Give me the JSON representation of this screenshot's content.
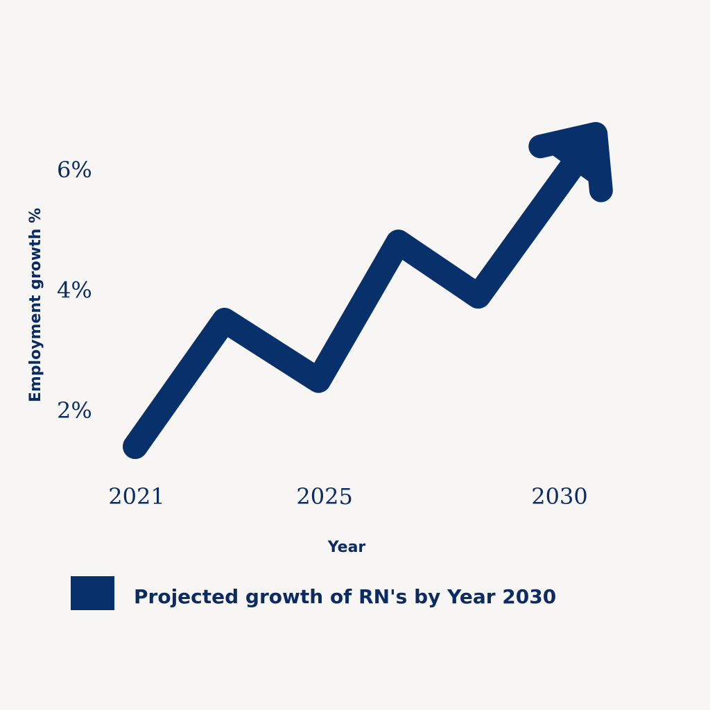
{
  "chart_data": {
    "type": "line",
    "title": "",
    "xlabel": "Year",
    "ylabel": "Employment growth %",
    "x_ticks": [
      "2021",
      "2025",
      "2030"
    ],
    "y_ticks": [
      "2%",
      "4%",
      "6%"
    ],
    "xlim": [
      2021,
      2030
    ],
    "ylim": [
      1,
      7
    ],
    "grid": false,
    "legend_position": "bottom",
    "series": [
      {
        "name": "Projected growth of RN's by Year 2030",
        "x": [
          2021,
          2022.9,
          2024.9,
          2026.6,
          2028.3,
          2030.8
        ],
        "y": [
          1.4,
          3.5,
          2.5,
          4.8,
          3.9,
          6.6
        ],
        "end_marker": "arrow"
      }
    ],
    "colors": {
      "line": "#08306b",
      "text": "#0b2c63",
      "background": "#f8f5f5"
    }
  }
}
